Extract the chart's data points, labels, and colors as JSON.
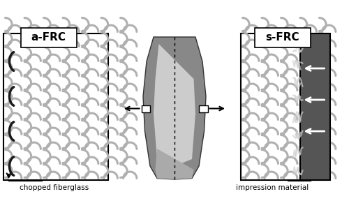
{
  "bg_color": "#ffffff",
  "fiber_color_gray": "#b0b0b0",
  "fiber_color_black": "#1a1a1a",
  "dark_rect_color": "#555555",
  "label_left": "a-FRC",
  "label_right": "s-FRC",
  "caption_left": "chopped fiberglass",
  "caption_right": "impression material",
  "box_outline_color": "#000000",
  "arrow_color_black": "#000000",
  "arrow_color_white": "#ffffff"
}
